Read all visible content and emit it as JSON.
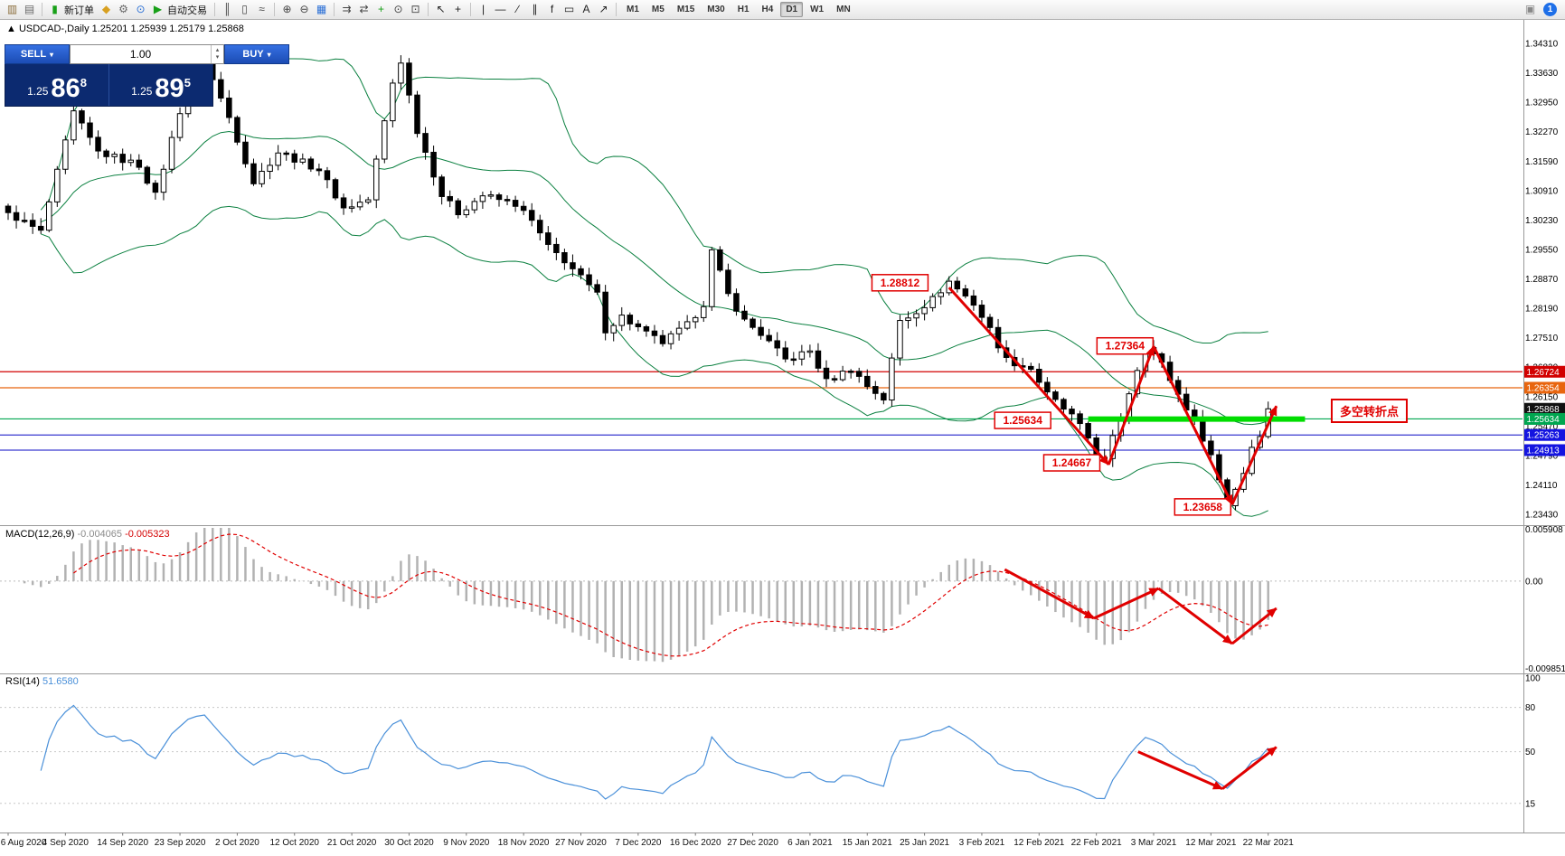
{
  "toolbar": {
    "new_order_label": "新订单",
    "auto_trading_label": "自动交易",
    "timeframes": [
      "M1",
      "M5",
      "M15",
      "M30",
      "H1",
      "H4",
      "D1",
      "W1",
      "MN"
    ],
    "active_timeframe": "D1",
    "notification_badge": "1",
    "status_icon": "▣",
    "items": [
      {
        "t": "icon",
        "n": "new-chart-icon",
        "g": "▥",
        "c": "#8a6d3b"
      },
      {
        "t": "icon",
        "n": "profiles-icon",
        "g": "▤",
        "c": "#666666"
      },
      {
        "t": "sep"
      },
      {
        "t": "icon",
        "n": "new-order-icon",
        "g": "▮",
        "c": "#18a018"
      },
      {
        "t": "label",
        "n": "new-order-button",
        "key": "new_order_label"
      },
      {
        "t": "icon",
        "n": "mql-wizard-icon",
        "g": "◆",
        "c": "#d8a020"
      },
      {
        "t": "icon",
        "n": "expert-advisors-icon",
        "g": "⚙",
        "c": "#666666"
      },
      {
        "t": "icon",
        "n": "market-watch-icon",
        "g": "⊙",
        "c": "#2a6fd6"
      },
      {
        "t": "icon",
        "n": "auto-trading-icon",
        "g": "▶",
        "c": "#18a018"
      },
      {
        "t": "label",
        "n": "auto-trading-button",
        "key": "auto_trading_label"
      },
      {
        "t": "sep"
      },
      {
        "t": "icon",
        "n": "bar-chart-type-icon",
        "g": "║",
        "c": "#444444"
      },
      {
        "t": "icon",
        "n": "candlestick-chart-type-icon",
        "g": "▯",
        "c": "#444444"
      },
      {
        "t": "icon",
        "n": "line-chart-type-icon",
        "g": "≈",
        "c": "#444444"
      },
      {
        "t": "sep"
      },
      {
        "t": "icon",
        "n": "zoom-in-icon",
        "g": "⊕",
        "c": "#444444"
      },
      {
        "t": "icon",
        "n": "zoom-out-icon",
        "g": "⊖",
        "c": "#444444"
      },
      {
        "t": "icon",
        "n": "tile-windows-icon",
        "g": "▦",
        "c": "#2a6fd6"
      },
      {
        "t": "sep"
      },
      {
        "t": "icon",
        "n": "auto-scroll-icon",
        "g": "⇉",
        "c": "#444444"
      },
      {
        "t": "icon",
        "n": "chart-shift-icon",
        "g": "⇄",
        "c": "#444444"
      },
      {
        "t": "icon",
        "n": "indicators-icon",
        "g": "+",
        "c": "#18a018"
      },
      {
        "t": "icon",
        "n": "periods-icon",
        "g": "⊙",
        "c": "#444444"
      },
      {
        "t": "icon",
        "n": "templates-icon",
        "g": "⊡",
        "c": "#444444"
      },
      {
        "t": "sep"
      },
      {
        "t": "icon",
        "n": "cursor-icon",
        "g": "↖",
        "c": "#222222"
      },
      {
        "t": "icon",
        "n": "crosshair-icon",
        "g": "+",
        "c": "#222222"
      },
      {
        "t": "sep"
      },
      {
        "t": "icon",
        "n": "vertical-line-icon",
        "g": "|",
        "c": "#222222"
      },
      {
        "t": "icon",
        "n": "horizontal-line-icon",
        "g": "—",
        "c": "#222222"
      },
      {
        "t": "icon",
        "n": "trendline-icon",
        "g": "∕",
        "c": "#222222"
      },
      {
        "t": "icon",
        "n": "channel-icon",
        "g": "∥",
        "c": "#222222"
      },
      {
        "t": "icon",
        "n": "fibonacci-icon",
        "g": "f",
        "c": "#222222"
      },
      {
        "t": "icon",
        "n": "shapes-icon",
        "g": "▭",
        "c": "#222222"
      },
      {
        "t": "icon",
        "n": "text-label-icon",
        "g": "A",
        "c": "#222222"
      },
      {
        "t": "icon",
        "n": "arrow-tools-icon",
        "g": "↗",
        "c": "#222222"
      },
      {
        "t": "sep"
      },
      {
        "t": "tf"
      }
    ]
  },
  "symbol_header": {
    "marker": "▲",
    "text": "USDCAD-,Daily  1.25201 1.25939 1.25179 1.25868"
  },
  "trade_panel": {
    "sell_label": "SELL",
    "buy_label": "BUY",
    "caret": "▾",
    "lot_value": "1.00",
    "spin_up": "▴",
    "spin_down": "▾",
    "sell_price_main": "1.25",
    "sell_price_big": "86",
    "sell_price_sup": "8",
    "buy_price_main": "1.25",
    "buy_price_big": "89",
    "buy_price_sup": "5"
  },
  "macd_label": {
    "name": "MACD(12,26,9)",
    "value": "-0.004065",
    "signal": "-0.005323"
  },
  "rsi_label": {
    "name": "RSI(14)",
    "value": "51.6580"
  },
  "note_box": {
    "text": "多空转折点"
  },
  "chart_data": {
    "type": "candlestick",
    "symbol": "USDCAD",
    "period": "Daily",
    "num_candles": 155,
    "current_price": 1.25868,
    "price_axis_range": [
      1.2343,
      1.3431
    ],
    "price_axis_ticks": [
      "1.34310",
      "1.33630",
      "1.32950",
      "1.32270",
      "1.31590",
      "1.30910",
      "1.30230",
      "1.29550",
      "1.28870",
      "1.28190",
      "1.27510",
      "1.26830",
      "1.26150",
      "1.25470",
      "1.24790",
      "1.24110",
      "1.23430"
    ],
    "macd_axis": {
      "top_label": "0.005908",
      "zero_label": "0.00",
      "bottom_label": "-0.009851",
      "top": 0.005908,
      "bottom": -0.009851
    },
    "rsi_axis_labels": [
      "100",
      "80",
      "50",
      "15"
    ],
    "rsi_axis_values": [
      100,
      80,
      50,
      15
    ],
    "label_every": 7,
    "date_labels": [
      "6 Aug 2020",
      "4 Sep 2020",
      "14 Sep 2020",
      "23 Sep 2020",
      "2 Oct 2020",
      "12 Oct 2020",
      "21 Oct 2020",
      "30 Oct 2020",
      "9 Nov 2020",
      "18 Nov 2020",
      "27 Nov 2020",
      "7 Dec 2020",
      "16 Dec 2020",
      "27 Dec 2020",
      "6 Jan 2021",
      "15 Jan 2021",
      "25 Jan 2021",
      "3 Feb 2021",
      "12 Feb 2021",
      "22 Feb 2021",
      "3 Mar 2021",
      "12 Mar 2021",
      "22 Mar 2021"
    ],
    "close_path_anchors": [
      [
        0,
        1.304
      ],
      [
        4,
        1.2995
      ],
      [
        8,
        1.327
      ],
      [
        11,
        1.318
      ],
      [
        16,
        1.315
      ],
      [
        18,
        1.308
      ],
      [
        22,
        1.334
      ],
      [
        24,
        1.339
      ],
      [
        27,
        1.326
      ],
      [
        30,
        1.311
      ],
      [
        33,
        1.318
      ],
      [
        38,
        1.314
      ],
      [
        41,
        1.305
      ],
      [
        44,
        1.307
      ],
      [
        47,
        1.334
      ],
      [
        48,
        1.339
      ],
      [
        50,
        1.323
      ],
      [
        53,
        1.308
      ],
      [
        55,
        1.304
      ],
      [
        58,
        1.308
      ],
      [
        62,
        1.306
      ],
      [
        64,
        1.302
      ],
      [
        66,
        1.296
      ],
      [
        68,
        1.293
      ],
      [
        70,
        1.289
      ],
      [
        72,
        1.285
      ],
      [
        73,
        1.277
      ],
      [
        75,
        1.28
      ],
      [
        78,
        1.276
      ],
      [
        80,
        1.274
      ],
      [
        83,
        1.278
      ],
      [
        85,
        1.283
      ],
      [
        86,
        1.295
      ],
      [
        88,
        1.285
      ],
      [
        90,
        1.279
      ],
      [
        92,
        1.276
      ],
      [
        95,
        1.27
      ],
      [
        98,
        1.272
      ],
      [
        100,
        1.265
      ],
      [
        103,
        1.268
      ],
      [
        105,
        1.264
      ],
      [
        107,
        1.261
      ],
      [
        109,
        1.279
      ],
      [
        110,
        1.28
      ],
      [
        113,
        1.284
      ],
      [
        115,
        1.2881
      ],
      [
        118,
        1.283
      ],
      [
        120,
        1.277
      ],
      [
        122,
        1.27
      ],
      [
        125,
        1.268
      ],
      [
        127,
        1.262
      ],
      [
        130,
        1.257
      ],
      [
        132,
        1.252
      ],
      [
        133,
        1.248
      ],
      [
        134,
        1.2467
      ],
      [
        136,
        1.257
      ],
      [
        138,
        1.268
      ],
      [
        139,
        1.2736
      ],
      [
        141,
        1.269
      ],
      [
        143,
        1.262
      ],
      [
        145,
        1.256
      ],
      [
        147,
        1.248
      ],
      [
        149,
        1.2366
      ],
      [
        151,
        1.244
      ],
      [
        152,
        1.25
      ],
      [
        153,
        1.253
      ],
      [
        154,
        1.25868
      ]
    ],
    "levels": [
      {
        "price": 1.26724,
        "label": "1.26724",
        "line_color": "#d20000",
        "tag_bg": "#d20000"
      },
      {
        "price": 1.26354,
        "label": "1.26354",
        "line_color": "#e8650e",
        "tag_bg": "#e8650e"
      },
      {
        "price": 1.25868,
        "label": "1.25868",
        "line_color": "#999999",
        "tag_bg": "#111111",
        "no_line": true
      },
      {
        "price": 1.25634,
        "label": "1.25634",
        "line_color": "#00a650",
        "tag_bg": "#00a650"
      },
      {
        "price": 1.25263,
        "label": "1.25263",
        "line_color": "#3a3ad0",
        "tag_bg": "#1414e0"
      },
      {
        "price": 1.24913,
        "label": "1.24913",
        "line_color": "#3a3ad0",
        "tag_bg": "#1414e0"
      }
    ],
    "support_zone": {
      "price": 1.2563,
      "from_idx": 132,
      "to_idx": 158.5,
      "color": "#00dd00"
    },
    "price_annotations": [
      {
        "text": "1.28812",
        "idx": 109,
        "price": 1.2878
      },
      {
        "text": "1.27364",
        "idx": 136.5,
        "price": 1.2732
      },
      {
        "text": "1.25634",
        "idx": 124,
        "price": 1.256
      },
      {
        "text": "1.24667",
        "idx": 130,
        "price": 1.2462
      },
      {
        "text": "1.23658",
        "idx": 146,
        "price": 1.236
      }
    ],
    "main_arrows": [
      [
        [
          115,
          1.2867
        ],
        [
          134.5,
          1.2458
        ]
      ],
      [
        [
          134.5,
          1.2458
        ],
        [
          140,
          1.2731
        ]
      ],
      [
        [
          140,
          1.2731
        ],
        [
          149.6,
          1.2366
        ]
      ],
      [
        [
          149.6,
          1.2366
        ],
        [
          155,
          1.2593
        ]
      ]
    ],
    "macd_arrows": [
      [
        [
          121.8,
          0.00129
        ],
        [
          132.7,
          -0.00413
        ]
      ],
      [
        [
          132.7,
          -0.00413
        ],
        [
          140.6,
          -0.00082
        ]
      ],
      [
        [
          140.6,
          -0.00082
        ],
        [
          149.6,
          -0.00694
        ]
      ],
      [
        [
          149.6,
          -0.00694
        ],
        [
          155,
          -0.00303
        ]
      ]
    ],
    "rsi_arrows": [
      [
        [
          138.1,
          50
        ],
        [
          148.4,
          24.9
        ]
      ],
      [
        [
          148.4,
          24.9
        ],
        [
          155,
          53.1
        ]
      ]
    ]
  }
}
